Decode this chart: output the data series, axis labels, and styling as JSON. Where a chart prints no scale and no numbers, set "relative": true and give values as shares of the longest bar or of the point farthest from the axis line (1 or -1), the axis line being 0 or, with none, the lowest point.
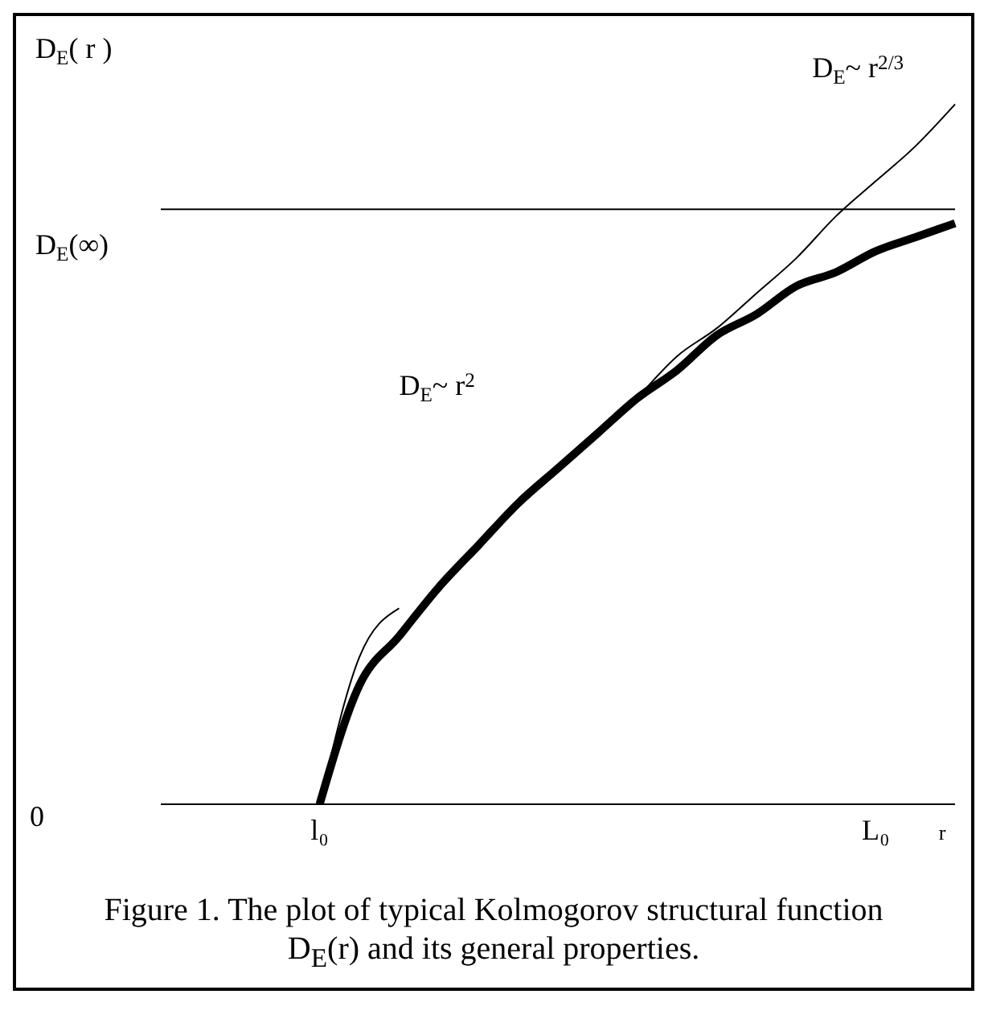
{
  "chart_data": {
    "type": "line",
    "relative": true,
    "ylabel": "D$_{E}$( r )",
    "xlabel": "r",
    "categories": [
      null,
      null,
      null,
      null,
      "l₀",
      null,
      null,
      null,
      null,
      null,
      null,
      null,
      null,
      null,
      null,
      null,
      null,
      null,
      "L₀",
      null,
      null
    ],
    "series": [
      {
        "color": "#000000",
        "values": [
          null,
          null,
          null,
          null,
          0,
          0.17,
          0.24,
          0.31,
          0.37,
          0.43,
          0.48,
          0.53,
          0.58,
          0.62,
          0.67,
          0.7,
          0.74,
          0.76,
          0.79,
          0.81,
          0.83
        ]
      },
      {
        "color": "#000000",
        "values": [
          null,
          null,
          null,
          null,
          null,
          null,
          null,
          null,
          null,
          null,
          null,
          null,
          0.58,
          0.64,
          0.68,
          0.73,
          0.78,
          0.84,
          0.89,
          0.94,
          1.0
        ]
      },
      {
        "color": "#000000",
        "values": [
          null,
          null,
          null,
          null,
          0,
          0.21,
          0.28,
          null,
          null,
          null,
          null,
          null,
          null,
          null,
          null,
          null,
          null,
          null,
          null,
          null,
          null
        ]
      }
    ],
    "ref_lines": [
      {
        "axis": "y",
        "value": 0.85,
        "label": "D$_{E}$(∞)",
        "color": "#000000"
      }
    ],
    "annotations": [
      "D$_{E}$~ r$^{2}$",
      "D$_{E}$~ r$^{2/3}$",
      "0",
      "Figure 1. The plot of typical Kolmogorov structural function D$_{E}$(r) and its general properties."
    ],
    "marker": "none",
    "legend": false
  }
}
